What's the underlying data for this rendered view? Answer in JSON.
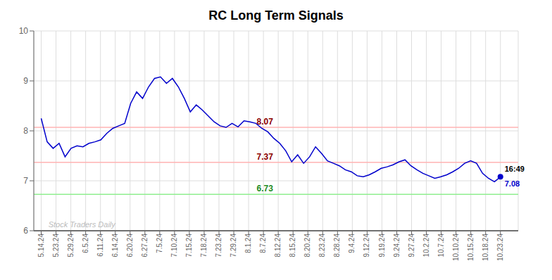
{
  "chart_data": {
    "type": "line",
    "title": "RC Long Term Signals",
    "color": "#0000cc",
    "x": [
      0,
      0.4026,
      0.8052,
      1.2078,
      1.6104,
      2.013,
      2.4156,
      2.8182,
      3.2208,
      3.6234,
      4.026,
      4.4286,
      4.8312,
      5.2338,
      5.6364,
      6.039,
      6.4416,
      6.8442,
      7.2468,
      7.6494,
      8.0519,
      8.4545,
      8.8571,
      9.2597,
      9.6623,
      10.0649,
      10.4675,
      10.8701,
      11.2727,
      11.6753,
      12.0779,
      12.4805,
      12.8831,
      13.2857,
      13.6883,
      14.0909,
      14.4935,
      14.8961,
      15.2987,
      15.7013,
      16.1039,
      16.5065,
      16.9091,
      17.3117,
      17.7143,
      18.1169,
      18.5195,
      18.9221,
      19.3247,
      19.7273,
      20.1299,
      20.5325,
      20.9351,
      21.3377,
      21.7403,
      22.1429,
      22.5455,
      22.9481,
      23.3506,
      23.7532,
      24.1558,
      24.5584,
      24.961,
      25.3636,
      25.7662,
      26.1688,
      26.5714,
      26.974,
      27.3766,
      27.7792,
      28.1818,
      28.5844,
      28.987,
      29.3896,
      29.7922,
      30.1948,
      30.5974,
      31
    ],
    "values": [
      8.25,
      7.78,
      7.65,
      7.75,
      7.48,
      7.65,
      7.7,
      7.68,
      7.75,
      7.78,
      7.82,
      7.95,
      8.05,
      8.1,
      8.15,
      8.55,
      8.78,
      8.65,
      8.88,
      9.05,
      9.08,
      8.95,
      9.05,
      8.88,
      8.65,
      8.38,
      8.52,
      8.42,
      8.3,
      8.18,
      8.1,
      8.07,
      8.15,
      8.08,
      8.2,
      8.18,
      8.15,
      8.05,
      7.98,
      7.85,
      7.75,
      7.6,
      7.38,
      7.52,
      7.35,
      7.48,
      7.68,
      7.55,
      7.4,
      7.35,
      7.3,
      7.22,
      7.18,
      7.1,
      7.08,
      7.12,
      7.18,
      7.25,
      7.28,
      7.32,
      7.38,
      7.42,
      7.3,
      7.22,
      7.15,
      7.1,
      7.05,
      7.08,
      7.12,
      7.18,
      7.25,
      7.35,
      7.4,
      7.35,
      7.15,
      7.05,
      6.98,
      7.08
    ],
    "xlim": [
      -0.5,
      32.2
    ],
    "xticks": [
      {
        "value": 0,
        "label": "5.14.24"
      },
      {
        "value": 1,
        "label": "5.23.24"
      },
      {
        "value": 2,
        "label": "5.29.24"
      },
      {
        "value": 3,
        "label": "6.5.24"
      },
      {
        "value": 4,
        "label": "6.11.24"
      },
      {
        "value": 5,
        "label": "6.14.24"
      },
      {
        "value": 6,
        "label": "6.20.24"
      },
      {
        "value": 7,
        "label": "6.27.24"
      },
      {
        "value": 8,
        "label": "7.5.24"
      },
      {
        "value": 9,
        "label": "7.10.24"
      },
      {
        "value": 10,
        "label": "7.15.24"
      },
      {
        "value": 11,
        "label": "7.18.24"
      },
      {
        "value": 12,
        "label": "7.23.24"
      },
      {
        "value": 13,
        "label": "7.29.24"
      },
      {
        "value": 14,
        "label": "8.1.24"
      },
      {
        "value": 15,
        "label": "8.7.24"
      },
      {
        "value": 16,
        "label": "8.12.24"
      },
      {
        "value": 17,
        "label": "8.15.24"
      },
      {
        "value": 18,
        "label": "8.20.24"
      },
      {
        "value": 19,
        "label": "8.23.24"
      },
      {
        "value": 20,
        "label": "8.28.24"
      },
      {
        "value": 21,
        "label": "9.4.24"
      },
      {
        "value": 22,
        "label": "9.12.24"
      },
      {
        "value": 23,
        "label": "9.19.24"
      },
      {
        "value": 24,
        "label": "9.24.24"
      },
      {
        "value": 25,
        "label": "9.27.24"
      },
      {
        "value": 26,
        "label": "10.2.24"
      },
      {
        "value": 27,
        "label": "10.7.24"
      },
      {
        "value": 28,
        "label": "10.10.24"
      },
      {
        "value": 29,
        "label": "10.15.24"
      },
      {
        "value": 30,
        "label": "10.18.24"
      },
      {
        "value": 31,
        "label": "10.23.24"
      }
    ],
    "ylim": [
      6,
      10
    ],
    "yticks": [
      6,
      7,
      8,
      9,
      10
    ],
    "grid": true,
    "reference_lines": [
      {
        "value": 8.07,
        "label": "8.07",
        "color": "#ffb3b3",
        "label_color": "#8b0000"
      },
      {
        "value": 7.37,
        "label": "7.37",
        "color": "#ffb3b3",
        "label_color": "#8b0000"
      },
      {
        "value": 6.73,
        "label": "6.73",
        "color": "#90ee90",
        "label_color": "#228b22"
      }
    ],
    "baseline": {
      "value": 6,
      "color": "#555555"
    },
    "watermark": {
      "text": "Stock Traders Daily",
      "color": "#bbbbbb"
    },
    "end_point": {
      "time_label": "16:49",
      "time_label_color": "#000000",
      "value_label": "7.08",
      "color": "#0000cc"
    }
  }
}
